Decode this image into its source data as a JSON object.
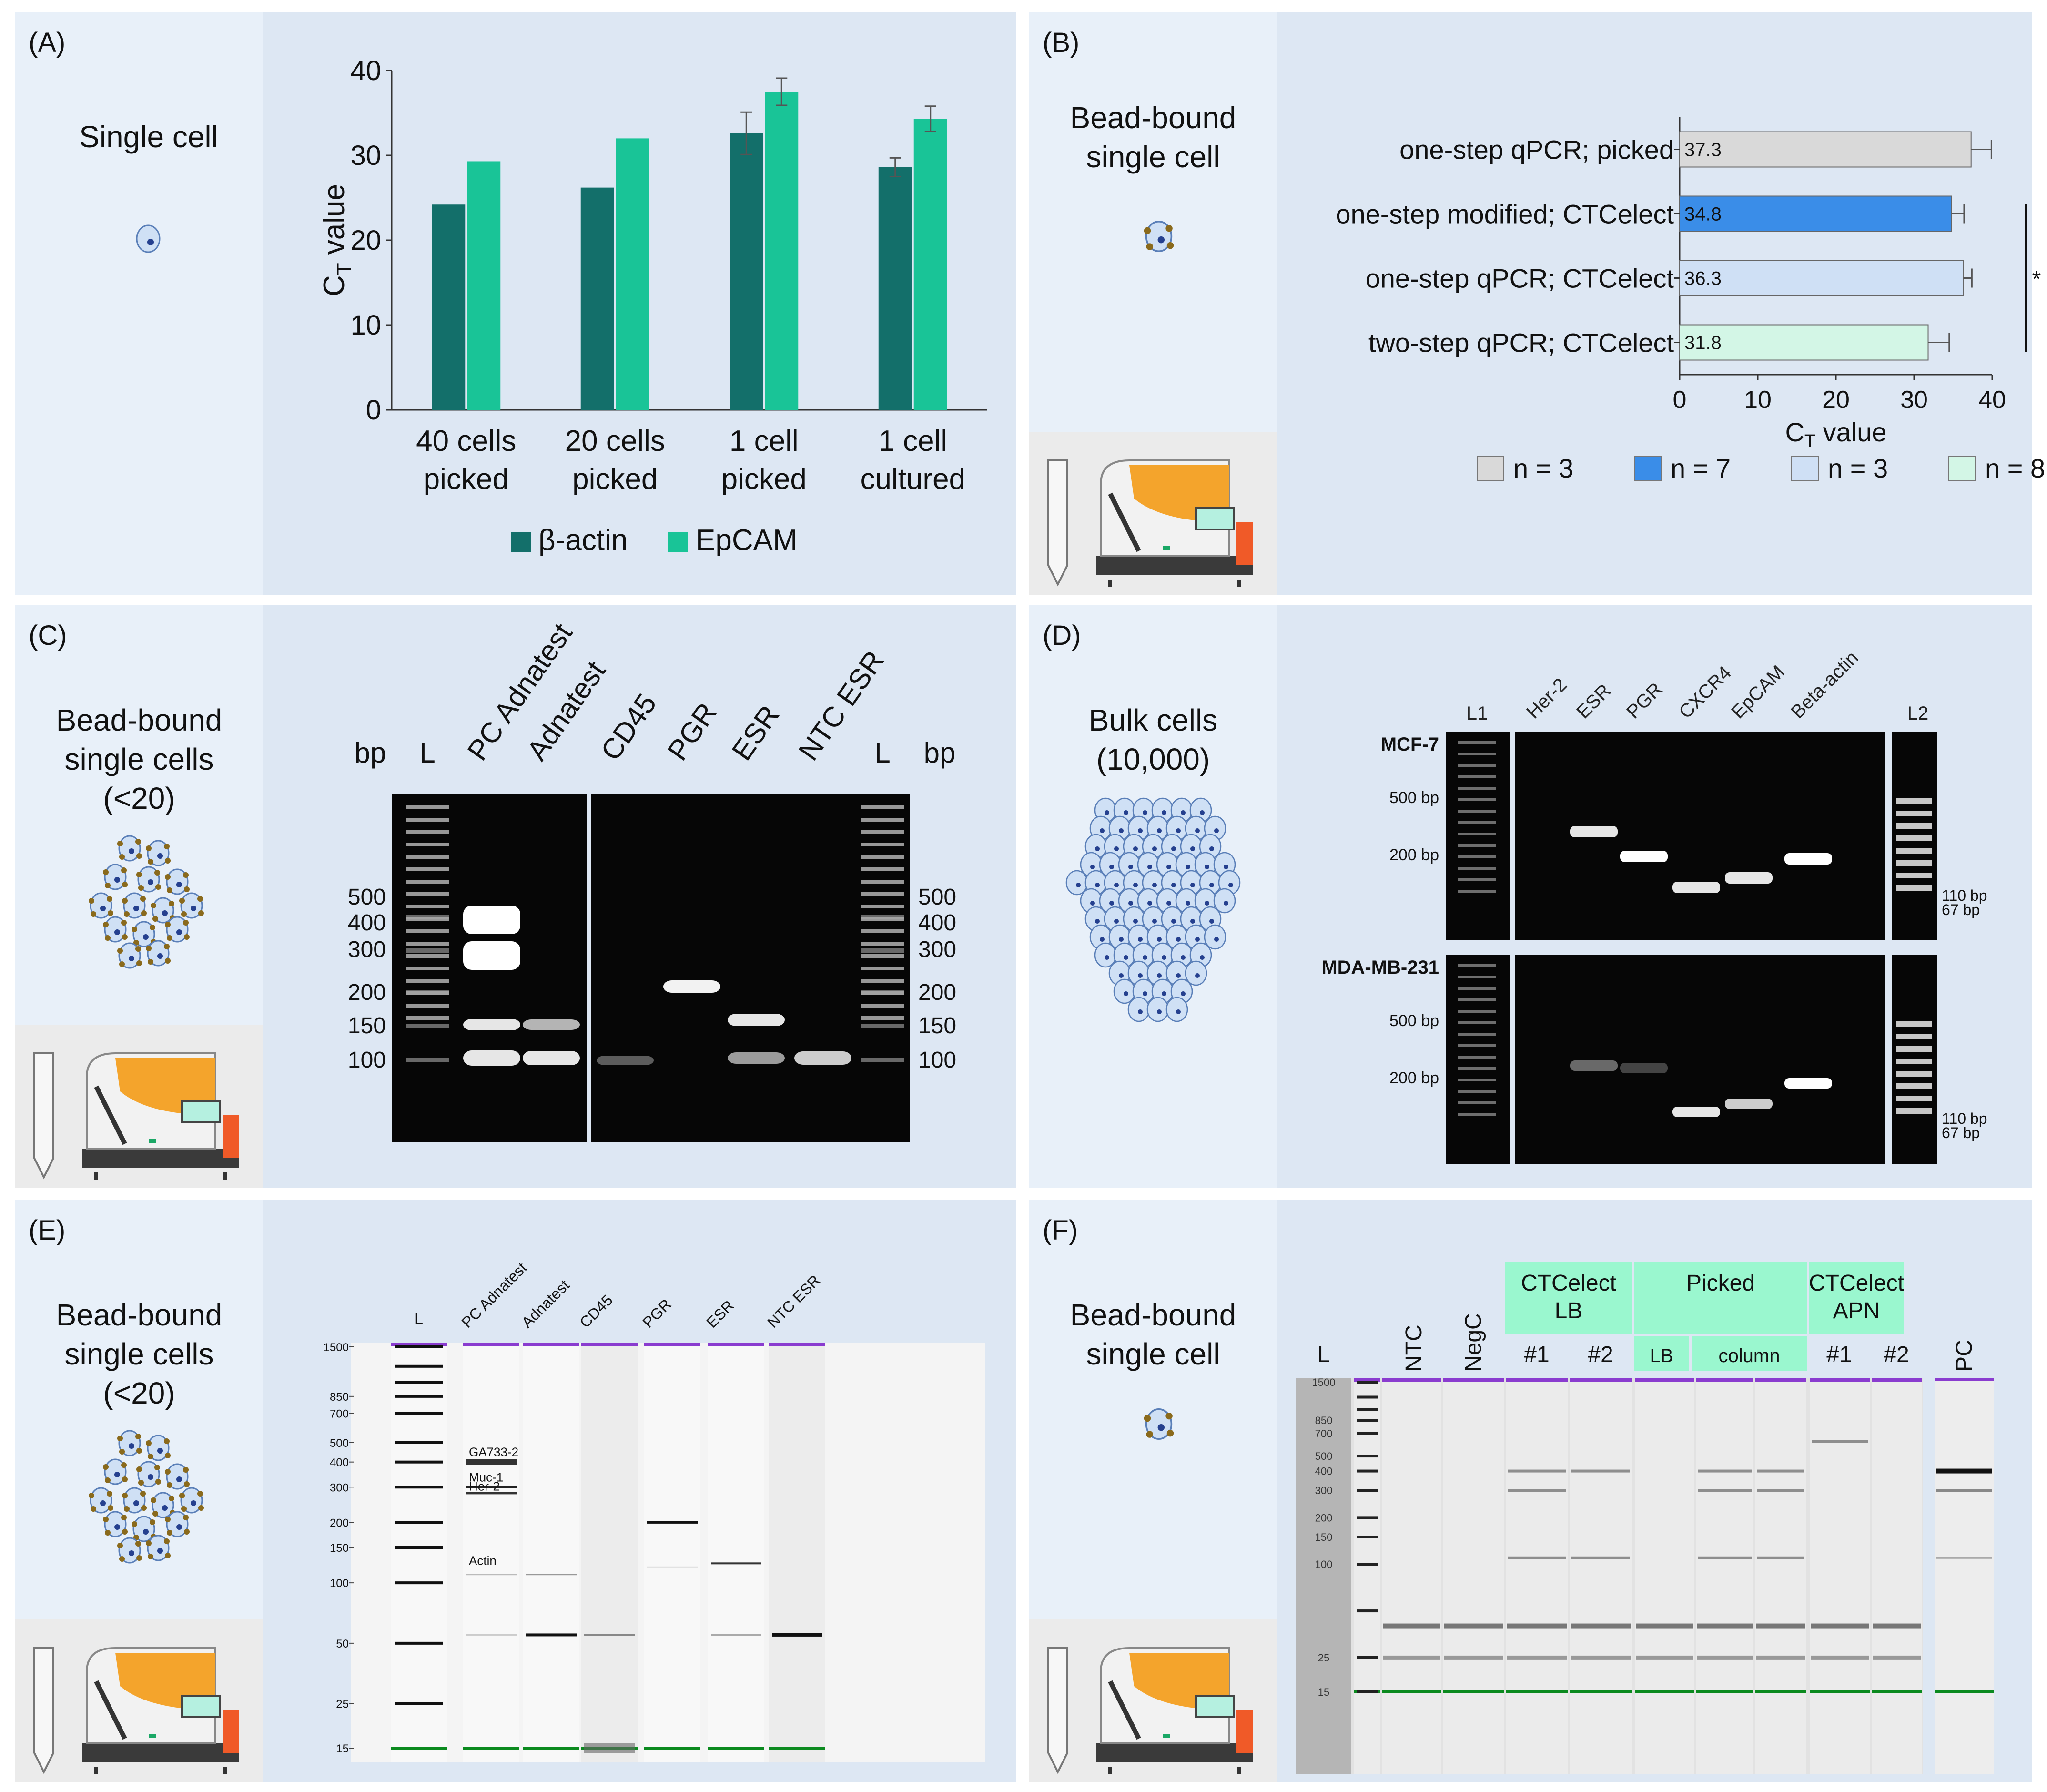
{
  "panels": {
    "A": {
      "label": "(A)",
      "description": [
        "Single cell"
      ],
      "chart_data": {
        "type": "bar",
        "ylabel_main": "C",
        "ylabel_sub": "T",
        "ylabel_rest": " value",
        "ylim": [
          0,
          40
        ],
        "yticks": [
          "0",
          "10",
          "20",
          "30",
          "40"
        ],
        "categories": [
          [
            "40 cells",
            "picked"
          ],
          [
            "20 cells",
            "picked"
          ],
          [
            "1 cell",
            "picked"
          ],
          [
            "1 cell",
            "cultured"
          ]
        ],
        "series": [
          {
            "name": "β-actin",
            "color": "#136f6a",
            "values": [
              24.2,
              26.2,
              32.6,
              28.6
            ],
            "errors": [
              0,
              0,
              2.5,
              1.1
            ]
          },
          {
            "name": "EpCAM",
            "color": "#19c497",
            "values": [
              29.3,
              32.0,
              37.5,
              34.3
            ],
            "errors": [
              0,
              0,
              1.6,
              1.5
            ]
          }
        ],
        "legend": "bottom"
      }
    },
    "B": {
      "label": "(B)",
      "description": [
        "Bead-bound",
        "single cell"
      ],
      "chart_data": {
        "type": "bar",
        "orientation": "horizontal",
        "xlabel_main": "C",
        "xlabel_sub": "T",
        "xlabel_rest": " value",
        "xlim": [
          0,
          40
        ],
        "xticks": [
          "0",
          "10",
          "20",
          "30",
          "40"
        ],
        "categories": [
          "one-step qPCR; picked",
          "one-step modified; CTCelect",
          "one-step qPCR; CTCelect",
          "two-step qPCR; CTCelect"
        ],
        "values": [
          37.3,
          34.8,
          36.3,
          31.8
        ],
        "value_labels": [
          "37.3",
          "34.8",
          "36.3",
          "31.8"
        ],
        "errors": [
          2.6,
          1.6,
          1.1,
          2.7
        ],
        "colors": [
          "#d9d9d9",
          "#3a8de8",
          "#cfe0f5",
          "#d3f6e6"
        ],
        "legend": [
          "n = 3",
          "n = 7",
          "n = 3",
          "n = 8"
        ],
        "significance": "*"
      }
    },
    "C": {
      "label": "(C)",
      "description": [
        "Bead-bound",
        "single cells",
        "(<20)"
      ],
      "lane_labels": [
        "L",
        "PC Adnatest",
        "Adnatest",
        "CD45",
        "PGR",
        "ESR",
        "NTC ESR",
        "L"
      ],
      "unit": "bp",
      "markers": [
        "500",
        "400",
        "300",
        "200",
        "150",
        "100"
      ]
    },
    "D": {
      "label": "(D)",
      "description": [
        "Bulk cells",
        "(10,000)"
      ],
      "lane_labels": [
        "L1",
        "Her-2",
        "ESR",
        "PGR",
        "CXCR4",
        "EpCAM",
        "Beta-actin",
        "L2"
      ],
      "rows": [
        "MCF-7",
        "MDA-MB-231"
      ],
      "left_markers": [
        "500 bp",
        "200 bp"
      ],
      "right_markers": [
        "110 bp",
        "67 bp"
      ]
    },
    "E": {
      "label": "(E)",
      "description": [
        "Bead-bound",
        "single cells",
        "(<20)"
      ],
      "lane_labels": [
        "L",
        "PC Adnatest",
        "Adnatest",
        "CD45",
        "PGR",
        "ESR",
        "NTC ESR"
      ],
      "size_labels": [
        "1500",
        "850",
        "700",
        "500",
        "400",
        "300",
        "200",
        "150",
        "100",
        "50",
        "25",
        "15"
      ],
      "band_labels": [
        "GA733-2",
        "Muc-1",
        "Her-2",
        "Actin"
      ]
    },
    "F": {
      "label": "(F)",
      "description": [
        "Bead-bound",
        "single cell"
      ],
      "lane_labels": [
        "L",
        "NTC",
        "NegC",
        "#1",
        "#2",
        "LB",
        "column",
        "#1",
        "#2",
        "PC"
      ],
      "groups": [
        "CTCelect",
        "LB",
        "Picked",
        "CTCelect",
        "APN"
      ],
      "size_labels": [
        "1500",
        "850",
        "700",
        "500",
        "400",
        "300",
        "200",
        "150",
        "100",
        "25",
        "15"
      ]
    }
  }
}
